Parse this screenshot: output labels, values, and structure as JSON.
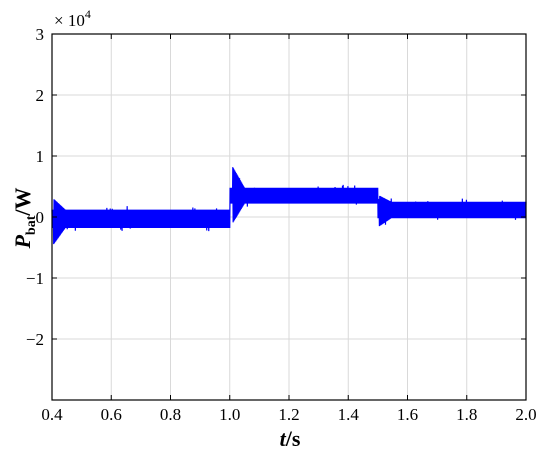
{
  "chart_data": {
    "type": "line",
    "xlabel_main": "t",
    "xlabel_unit": "/s",
    "ylabel_main": "P",
    "ylabel_sub": "bat",
    "ylabel_unit": "/W",
    "multiplier_base": "× 10",
    "multiplier_exp": "4",
    "xlim": [
      0.4,
      2.0
    ],
    "ylim": [
      -3,
      3
    ],
    "xticks": [
      "0.4",
      "0.6",
      "0.8",
      "1.0",
      "1.2",
      "1.4",
      "1.6",
      "1.8",
      "2.0"
    ],
    "yticks": [
      "−2",
      "−1",
      "0",
      "1",
      "2",
      "3"
    ],
    "grid": true,
    "line_color": "#0000ff",
    "series": [
      {
        "segments": [
          {
            "x_start": 0.4,
            "x_end": 1.0,
            "mean": -0.02,
            "band": [
              -0.18,
              0.12
            ]
          },
          {
            "x_start": 1.0,
            "x_end": 1.5,
            "mean": 0.35,
            "band": [
              0.22,
              0.48
            ]
          },
          {
            "x_start": 1.5,
            "x_end": 2.0,
            "mean": 0.12,
            "band": [
              -0.02,
              0.25
            ]
          }
        ],
        "transients": [
          {
            "x": 0.405,
            "min": -0.45,
            "max": 0.3
          },
          {
            "x": 1.01,
            "min": -0.1,
            "max": 0.82
          },
          {
            "x": 1.505,
            "min": -0.15,
            "max": 0.35
          }
        ]
      }
    ]
  }
}
